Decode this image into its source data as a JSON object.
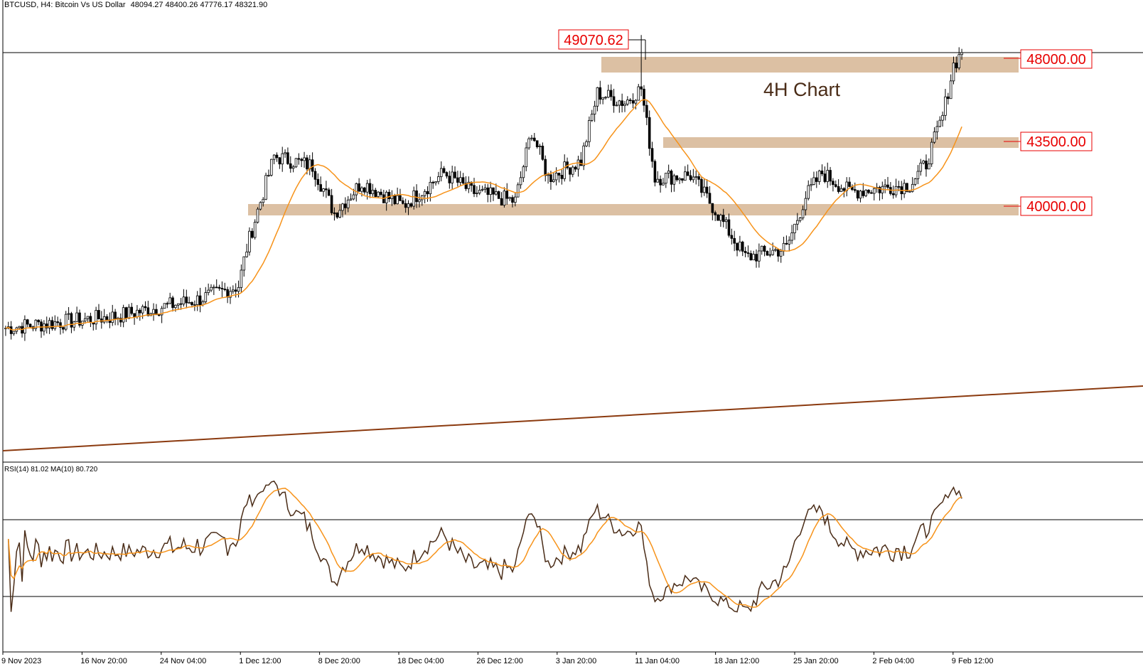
{
  "header": {
    "symbol": "BTCUSD, H4:  Bitcoin Vs US Dollar",
    "ohlc": "48094.27 48400.26 47776.17 48321.90"
  },
  "rsi_header": "RSI(14) 81.02 MA(10) 80.720",
  "annotation": "4H Chart",
  "high_label": "49070.62",
  "colors": {
    "candle": "#000000",
    "ma": "#f7931a",
    "rsi": "#4a2c17",
    "zone": "#dcc0a3",
    "label_red": "#e80000",
    "trendline": "#8b3a0f"
  },
  "chart_data": [
    {
      "type": "candlestick",
      "x_tick_labels": [
        "9 Nov 2023",
        "16 Nov 20:00",
        "24 Nov 04:00",
        "1 Dec 12:00",
        "8 Dec 20:00",
        "18 Dec 04:00",
        "26 Dec 12:00",
        "3 Jan 20:00",
        "11 Jan 04:00",
        "18 Jan 12:00",
        "25 Jan 20:00",
        "2 Feb 04:00",
        "9 Feb 12:00"
      ],
      "close_waypoints": [
        {
          "t": 0,
          "v": 36600
        },
        {
          "t": 40,
          "v": 37100
        },
        {
          "t": 70,
          "v": 37800
        },
        {
          "t": 85,
          "v": 38400
        },
        {
          "t": 88,
          "v": 40000
        },
        {
          "t": 92,
          "v": 41600
        },
        {
          "t": 98,
          "v": 43900
        },
        {
          "t": 112,
          "v": 43500
        },
        {
          "t": 120,
          "v": 41500
        },
        {
          "t": 130,
          "v": 42800
        },
        {
          "t": 145,
          "v": 41800
        },
        {
          "t": 160,
          "v": 43200
        },
        {
          "t": 170,
          "v": 42400
        },
        {
          "t": 186,
          "v": 42000
        },
        {
          "t": 192,
          "v": 45000
        },
        {
          "t": 198,
          "v": 43000
        },
        {
          "t": 210,
          "v": 43700
        },
        {
          "t": 216,
          "v": 46600
        },
        {
          "t": 226,
          "v": 46200
        },
        {
          "t": 232,
          "v": 46800
        },
        {
          "t": 237,
          "v": 43000
        },
        {
          "t": 250,
          "v": 43100
        },
        {
          "t": 258,
          "v": 41800
        },
        {
          "t": 270,
          "v": 39600
        },
        {
          "t": 285,
          "v": 40000
        },
        {
          "t": 292,
          "v": 42200
        },
        {
          "t": 298,
          "v": 43200
        },
        {
          "t": 308,
          "v": 42400
        },
        {
          "t": 330,
          "v": 42700
        },
        {
          "t": 336,
          "v": 43600
        },
        {
          "t": 342,
          "v": 45600
        },
        {
          "t": 346,
          "v": 47800
        },
        {
          "t": 349,
          "v": 48322
        }
      ],
      "candle_count": 350,
      "high": 49070.62,
      "ma_period": 20,
      "horizontal_levels": [
        48000.0,
        43500.0,
        40000.0
      ]
    },
    {
      "type": "line",
      "name": "RSI(14)",
      "levels": [
        70,
        30
      ],
      "last_value": 81.02,
      "ma": {
        "period": 10,
        "last_value": 80.72
      }
    }
  ]
}
